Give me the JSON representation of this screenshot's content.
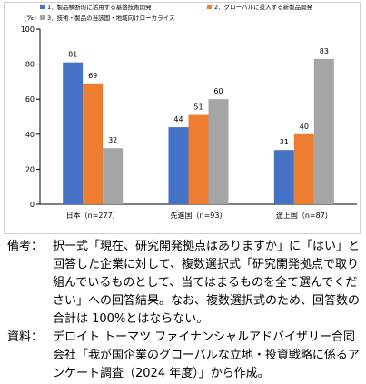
{
  "chart_data": {
    "type": "bar",
    "ylabel": "(%)",
    "ylim": [
      0,
      100
    ],
    "yticks": [
      0,
      20,
      40,
      60,
      80,
      100
    ],
    "grid": false,
    "legend_position": "top",
    "categories": [
      "日本（n=277）",
      "先進国（n=93）",
      "途上国（n=87）"
    ],
    "series": [
      {
        "name": "1．製品横断的に活用する基盤技術開発",
        "color": "#4472c4",
        "values": [
          81,
          44,
          31
        ]
      },
      {
        "name": "2．グローバルに投入する新製品開発",
        "color": "#ed7d31",
        "values": [
          69,
          51,
          40
        ]
      },
      {
        "name": "3．技術・製品の当該国・地域向けローカライズ",
        "color": "#a5a5a5",
        "values": [
          32,
          60,
          83
        ]
      }
    ]
  },
  "notes": {
    "remarks_label": "備考：",
    "remarks_text": "択一式「現在、研究開発拠点はありますか」に「はい」と回答した企業に対して、複数選択式「研究開発拠点で取り組んでいるものとして、当てはまるものを全て選んでください」への回答結果。なお、複数選択式のため、回答数の合計は 100%とはならない。",
    "source_label": "資料：",
    "source_text": "デロイト トーマツ ファイナンシャルアドバイザリー合同会社「我が国企業のグローバルな立地・投資戦略に係るアンケート調査（2024 年度）」から作成。"
  }
}
